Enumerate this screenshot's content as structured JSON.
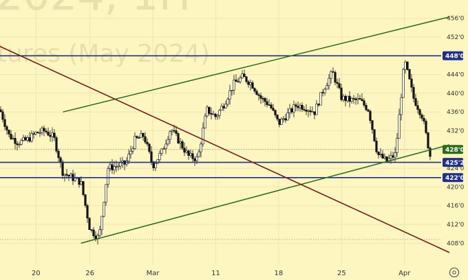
{
  "watermark": {
    "line1": "2024, 1H",
    "line2": "tures (May 2024)"
  },
  "colors": {
    "background": "#fdf6c1",
    "hline": "#1f2f8a",
    "channel": "#2d6a1e",
    "trendline": "#7a1a18",
    "last_price": "#2d6a1e",
    "candle_up": "#f5f5f5",
    "candle_down": "#111111"
  },
  "settings_icon": "gear-icon",
  "chart_data": {
    "type": "candlestick",
    "ylim": [
      406,
      458
    ],
    "y_ticks": [
      "456'0",
      "452'0",
      "448'0",
      "444'0",
      "440'0",
      "436'0",
      "432'0",
      "428'0",
      "424'0",
      "420'0",
      "416'0",
      "412'0",
      "408'0"
    ],
    "x_tick_labels": [
      "20",
      "26",
      "Mar",
      "11",
      "18",
      "25",
      "Apr"
    ],
    "x_range": [
      "2024-02-16",
      "2024-04-05"
    ],
    "x_ticks": [
      "2024-02-20",
      "2024-02-26",
      "2024-03-04",
      "2024-03-11",
      "2024-03-18",
      "2024-03-25",
      "2024-04-01"
    ],
    "price_path": [
      [
        "2024-02-16",
        436.5
      ],
      [
        "2024-02-17",
        431.0
      ],
      [
        "2024-02-18",
        429.5
      ],
      [
        "2024-02-19",
        430.0
      ],
      [
        "2024-02-20",
        431.5
      ],
      [
        "2024-02-21",
        432.0
      ],
      [
        "2024-02-22",
        430.5
      ],
      [
        "2024-02-23",
        423.0
      ],
      [
        "2024-02-24",
        422.0
      ],
      [
        "2024-02-25",
        421.0
      ],
      [
        "2024-02-26",
        411.0
      ],
      [
        "2024-02-27",
        409.0
      ],
      [
        "2024-02-28",
        424.0
      ],
      [
        "2024-02-29",
        424.5
      ],
      [
        "2024-03-01",
        425.0
      ],
      [
        "2024-03-02",
        430.0
      ],
      [
        "2024-03-03",
        431.0
      ],
      [
        "2024-03-04",
        424.5
      ],
      [
        "2024-03-05",
        427.5
      ],
      [
        "2024-03-06",
        432.5
      ],
      [
        "2024-03-07",
        429.5
      ],
      [
        "2024-03-08",
        426.5
      ],
      [
        "2024-03-09",
        426.0
      ],
      [
        "2024-03-10",
        436.5
      ],
      [
        "2024-03-11",
        435.0
      ],
      [
        "2024-03-12",
        438.0
      ],
      [
        "2024-03-13",
        442.0
      ],
      [
        "2024-03-14",
        443.5
      ],
      [
        "2024-03-15",
        442.0
      ],
      [
        "2024-03-16",
        439.0
      ],
      [
        "2024-03-17",
        437.5
      ],
      [
        "2024-03-18",
        433.5
      ],
      [
        "2024-03-19",
        435.5
      ],
      [
        "2024-03-20",
        437.5
      ],
      [
        "2024-03-21",
        437.0
      ],
      [
        "2024-03-22",
        436.0
      ],
      [
        "2024-03-23",
        441.0
      ],
      [
        "2024-03-24",
        444.5
      ],
      [
        "2024-03-25",
        439.0
      ],
      [
        "2024-03-26",
        438.5
      ],
      [
        "2024-03-27",
        438.5
      ],
      [
        "2024-03-28",
        436.5
      ],
      [
        "2024-03-29",
        427.0
      ],
      [
        "2024-03-30",
        425.5
      ],
      [
        "2024-03-31",
        427.0
      ],
      [
        "2024-04-01",
        447.0
      ],
      [
        "2024-04-02",
        439.0
      ],
      [
        "2024-04-03",
        435.0
      ],
      [
        "2024-04-04",
        425.2
      ]
    ],
    "horizontal_levels": [
      {
        "price": 448.0,
        "label": "448'0"
      },
      {
        "price": 425.25,
        "label": "425'2"
      },
      {
        "price": 422.0,
        "label": "422'0"
      }
    ],
    "last_price": {
      "price": 428.0,
      "label": "428'0"
    },
    "dotted_levels": [
      428.0,
      408.8
    ],
    "channel_lines": [
      {
        "from": [
          "2024-02-23",
          436.0
        ],
        "to": [
          "2024-04-06",
          456.3
        ]
      },
      {
        "from": [
          "2024-02-25",
          408.0
        ],
        "to": [
          "2024-04-06",
          429.0
        ]
      }
    ],
    "trendline": {
      "from": [
        "2024-02-16",
        450.0
      ],
      "to": [
        "2024-04-06",
        406.0
      ]
    }
  }
}
